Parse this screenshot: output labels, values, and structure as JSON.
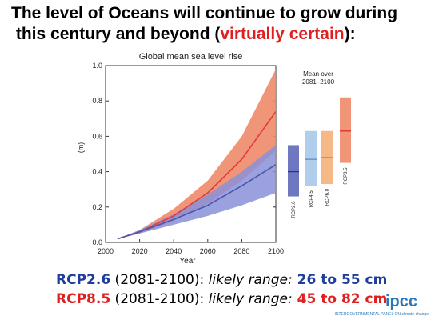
{
  "headline": {
    "line1": "The level of Oceans will continue to grow during",
    "line2_text": "this century and beyond (",
    "line2_accent": "virtually certain",
    "line2_end": "):"
  },
  "colors": {
    "rcp26": "#4a56b0",
    "rcp26_band": "#8890d8",
    "rcp85": "#e03c3c",
    "rcp85_band": "#f08a6a",
    "rcp45": "#a9c8ea",
    "rcp60": "#f4b07a",
    "accent": "#e02020",
    "footer_rcp26": "#1f3f9c",
    "footer_rcp85": "#e02020",
    "ipcc": "#2a78b8"
  },
  "chart_data": {
    "type": "area",
    "title": "Global mean sea level rise",
    "xlabel": "Year",
    "ylabel": "(m)",
    "xlim": [
      2000,
      2100
    ],
    "ylim": [
      0.0,
      1.0
    ],
    "xticks": [
      "2000",
      "2020",
      "2040",
      "2060",
      "2080",
      "2100"
    ],
    "yticks": [
      "0.0",
      "0.2",
      "0.4",
      "0.6",
      "0.8",
      "1.0"
    ],
    "x": [
      2007,
      2020,
      2040,
      2060,
      2080,
      2100
    ],
    "series": [
      {
        "name": "RCP2.6",
        "mean": [
          0.02,
          0.06,
          0.13,
          0.21,
          0.32,
          0.44
        ],
        "low": [
          0.02,
          0.05,
          0.1,
          0.15,
          0.21,
          0.28
        ],
        "high": [
          0.02,
          0.07,
          0.16,
          0.27,
          0.4,
          0.55
        ]
      },
      {
        "name": "RCP8.5",
        "mean": [
          0.02,
          0.06,
          0.15,
          0.28,
          0.47,
          0.74
        ],
        "low": [
          0.02,
          0.05,
          0.12,
          0.22,
          0.35,
          0.52
        ],
        "high": [
          0.02,
          0.07,
          0.19,
          0.35,
          0.6,
          0.98
        ]
      }
    ],
    "side_panel": {
      "title_line1": "Mean over",
      "title_line2": "2081–2100",
      "bars": [
        {
          "name": "RCP2.6",
          "low": 0.26,
          "mean": 0.4,
          "high": 0.55
        },
        {
          "name": "RCP4.5",
          "low": 0.32,
          "mean": 0.47,
          "high": 0.63
        },
        {
          "name": "RCP6.0",
          "low": 0.33,
          "mean": 0.48,
          "high": 0.63
        },
        {
          "name": "RCP8.5",
          "low": 0.45,
          "mean": 0.63,
          "high": 0.82
        }
      ]
    }
  },
  "footer": {
    "line1": {
      "label": "RCP2.6",
      "period": " (2081-2100):  ",
      "range_label": "likely range:",
      "range_value": " 26 to 55 cm"
    },
    "line2": {
      "label": "RCP8.5",
      "period": " (2081-2100):  ",
      "range_label": "likely range:",
      "range_value": " 45 to 82 cm"
    }
  },
  "logo": {
    "word": "ipcc",
    "sub": "INTERGOVERNMENTAL PANEL ON climate change"
  }
}
